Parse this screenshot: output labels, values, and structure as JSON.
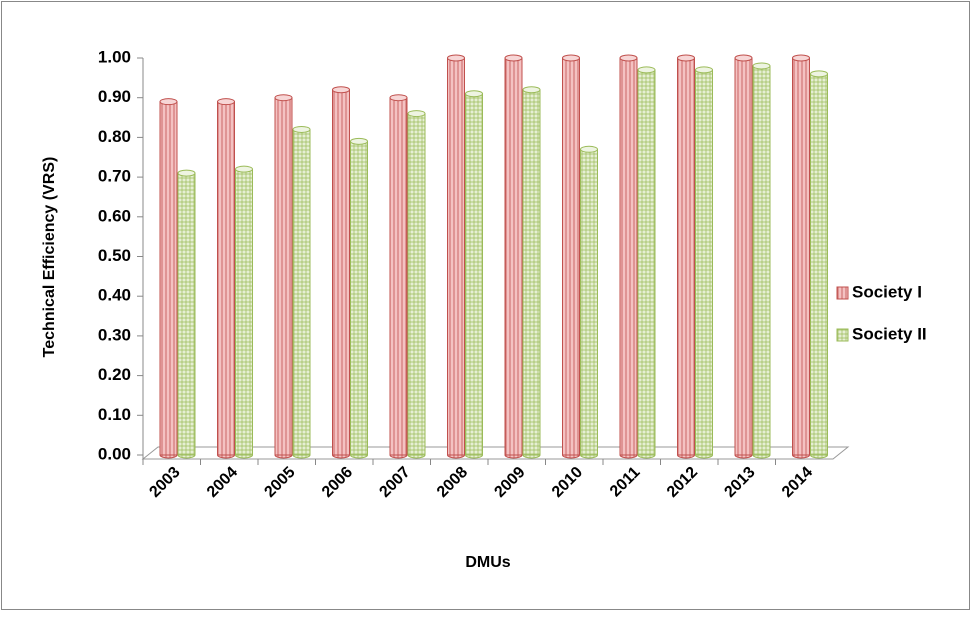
{
  "chart_data": {
    "type": "bar",
    "y_label": "Technical Efficiency (VRS)",
    "x_label": "DMUs",
    "categories": [
      "2003",
      "2004",
      "2005",
      "2006",
      "2007",
      "2008",
      "2009",
      "2010",
      "2011",
      "2012",
      "2013",
      "2014"
    ],
    "series": [
      {
        "name": "Society I",
        "color": "#c0504d",
        "values": [
          0.89,
          0.89,
          0.9,
          0.92,
          0.9,
          1.0,
          1.0,
          1.0,
          1.0,
          1.0,
          1.0,
          1.0
        ]
      },
      {
        "name": "Society II",
        "color": "#9bbb59",
        "values": [
          0.71,
          0.72,
          0.82,
          0.79,
          0.86,
          0.91,
          0.92,
          0.77,
          0.97,
          0.97,
          0.98,
          0.96
        ]
      }
    ],
    "ylim": [
      0,
      1
    ],
    "yticks": [
      {
        "value": 0,
        "label": "0.00"
      },
      {
        "value": 0.1,
        "label": "0.10"
      },
      {
        "value": 0.2,
        "label": "0.20"
      },
      {
        "value": 0.3,
        "label": "0.30"
      },
      {
        "value": 0.4,
        "label": "0.40"
      },
      {
        "value": 0.5,
        "label": "0.50"
      },
      {
        "value": 0.6,
        "label": "0.60"
      },
      {
        "value": 0.7,
        "label": "0.70"
      },
      {
        "value": 0.8,
        "label": "0.80"
      },
      {
        "value": 0.9,
        "label": "0.90"
      },
      {
        "value": 1,
        "label": "1.00"
      }
    ],
    "legend": "right"
  }
}
